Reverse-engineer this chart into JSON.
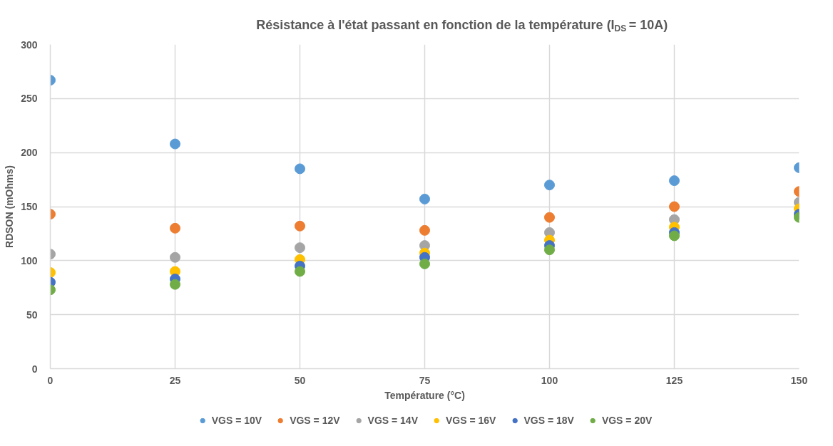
{
  "chart_data": {
    "type": "scatter",
    "title": "Résistance à l'état passant en fonction de la température (I$_{DS}$ = 10A)",
    "xlabel": "Température (°C)",
    "ylabel": "RDSON (mOhms)",
    "x": [
      0,
      25,
      50,
      75,
      100,
      125,
      150
    ],
    "xlim": [
      0,
      150
    ],
    "xticks": [
      0,
      25,
      50,
      75,
      100,
      125,
      150
    ],
    "ylim": [
      0,
      300
    ],
    "yticks": [
      0,
      50,
      100,
      150,
      200,
      250,
      300
    ],
    "grid": true,
    "legend": "bottom",
    "marker": "circle",
    "series": [
      {
        "name": "VGS = 10V",
        "color": "#5b9bd5",
        "values": [
          267,
          208,
          185,
          157,
          170,
          174,
          186
        ]
      },
      {
        "name": "VGS = 12V",
        "color": "#ed7d31",
        "values": [
          143,
          130,
          132,
          128,
          140,
          150,
          164
        ]
      },
      {
        "name": "VGS = 14V",
        "color": "#a5a5a5",
        "values": [
          106,
          103,
          112,
          114,
          126,
          138,
          154
        ]
      },
      {
        "name": "VGS = 16V",
        "color": "#ffc000",
        "values": [
          89,
          90,
          101,
          107,
          119,
          131,
          148
        ]
      },
      {
        "name": "VGS = 18V",
        "color": "#4472c4",
        "values": [
          80,
          83,
          95,
          103,
          114,
          126,
          143
        ]
      },
      {
        "name": "VGS = 20V",
        "color": "#70ad47",
        "values": [
          73,
          78,
          90,
          97,
          110,
          123,
          140
        ]
      }
    ]
  }
}
